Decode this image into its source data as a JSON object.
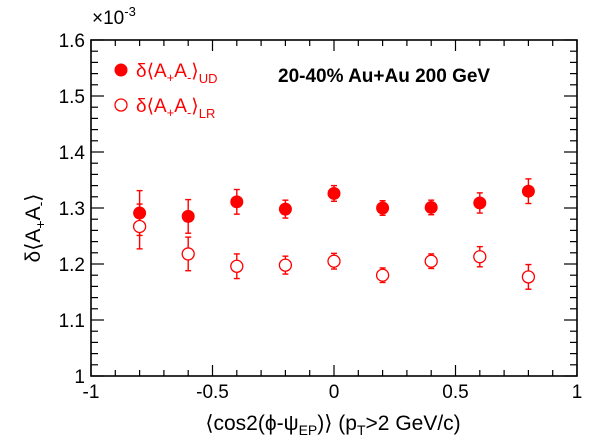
{
  "chart_data": {
    "type": "scatter",
    "annotation": "20-40% Au+Au 200 GeV",
    "multiplier": "×10",
    "multiplier_exp": "-3",
    "xlabel": {
      "pre": "⟨cos2(ϕ-ψ",
      "sub": "EP",
      "mid": ")⟩ (p",
      "sub2": "T",
      "post": ">2 GeV/c)"
    },
    "ylabel": {
      "pre": "δ⟨A",
      "sub1": "+",
      "mid": "A",
      "sub2": "-",
      "post": "⟩"
    },
    "xlim": [
      -1,
      1
    ],
    "ylim": [
      1.0,
      1.6
    ],
    "x_ticks": [
      "-1",
      "-0.5",
      "0",
      "0.5",
      "1"
    ],
    "y_ticks": [
      "1",
      "1.1",
      "1.2",
      "1.3",
      "1.4",
      "1.5",
      "1.6"
    ],
    "grid": false,
    "legend_position": "top-left",
    "series": [
      {
        "name": "δ⟨A+A-⟩UD",
        "legend": {
          "pre": "δ⟨A",
          "sub1": "+",
          "mid": "A",
          "sub2": "-",
          "post": "⟩",
          "sub3": "UD"
        },
        "marker": "filled-circle",
        "color": "#ff0000",
        "x": [
          -0.8,
          -0.6,
          -0.4,
          -0.2,
          0.0,
          0.2,
          0.4,
          0.6,
          0.8
        ],
        "y": [
          1.291,
          1.285,
          1.311,
          1.298,
          1.326,
          1.3,
          1.301,
          1.309,
          1.33
        ],
        "err": [
          0.04,
          0.03,
          0.022,
          0.016,
          0.014,
          0.013,
          0.013,
          0.018,
          0.022
        ]
      },
      {
        "name": "δ⟨A+A-⟩LR",
        "legend": {
          "pre": "δ⟨A",
          "sub1": "+",
          "mid": "A",
          "sub2": "-",
          "post": "⟩",
          "sub3": "LR"
        },
        "marker": "open-circle",
        "color": "#ff0000",
        "x": [
          -0.8,
          -0.6,
          -0.4,
          -0.2,
          0.0,
          0.2,
          0.4,
          0.6,
          0.8
        ],
        "y": [
          1.267,
          1.218,
          1.196,
          1.198,
          1.205,
          1.18,
          1.205,
          1.213,
          1.177
        ],
        "err": [
          0.04,
          0.03,
          0.022,
          0.016,
          0.014,
          0.013,
          0.013,
          0.018,
          0.022
        ]
      }
    ]
  }
}
